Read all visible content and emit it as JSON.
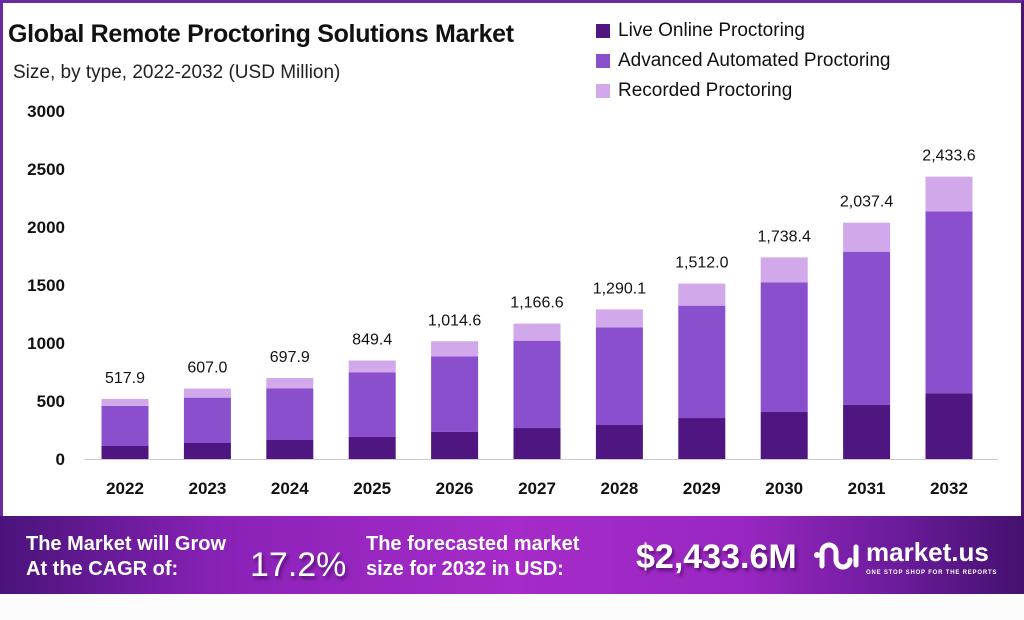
{
  "title": "Global Remote Proctoring Solutions Market",
  "subtitle": "Size, by type, 2022-2032 (USD Million)",
  "colors": {
    "live": "#4f1580",
    "advanced": "#8a4fcc",
    "recorded": "#d1a8ea",
    "frame": "#6a2aa0",
    "text": "#111111"
  },
  "chart_data": {
    "type": "bar",
    "stacked": true,
    "title": "Global Remote Proctoring Solutions Market",
    "subtitle": "Size, by type, 2022-2032 (USD Million)",
    "xlabel": "",
    "ylabel": "",
    "ylim": [
      0,
      3000
    ],
    "yticks": [
      "0",
      "500",
      "1000",
      "1500",
      "2000",
      "2500",
      "3000"
    ],
    "ytick_values": [
      0,
      500,
      1000,
      1500,
      2000,
      2500,
      3000
    ],
    "grid": false,
    "legend_position": "top-right",
    "categories": [
      "2022",
      "2023",
      "2024",
      "2025",
      "2026",
      "2027",
      "2028",
      "2029",
      "2030",
      "2031",
      "2032"
    ],
    "series": [
      {
        "name": "Live Online Proctoring",
        "color_key": "live",
        "values": [
          112,
          138,
          164,
          190,
          233,
          267,
          293,
          353,
          405,
          466,
          567
        ]
      },
      {
        "name": "Advanced Automated Proctoring",
        "color_key": "advanced",
        "values": [
          346,
          391,
          444,
          556,
          652,
          753,
          842,
          969,
          1118,
          1321,
          1567
        ]
      },
      {
        "name": "Recorded Proctoring",
        "color_key": "recorded",
        "values": [
          60,
          78,
          90,
          103,
          130,
          147,
          155,
          190,
          215,
          250,
          300
        ]
      }
    ],
    "totals": [
      517.9,
      607.0,
      697.9,
      849.4,
      1014.6,
      1166.6,
      1290.1,
      1512.0,
      1738.4,
      2037.4,
      2433.6
    ],
    "total_labels": [
      "517.9",
      "607.0",
      "697.9",
      "849.4",
      "1,014.6",
      "1,166.6",
      "1,290.1",
      "1,512.0",
      "1,738.4",
      "2,037.4",
      "2,433.6"
    ]
  },
  "banner": {
    "cagr_line1": "The Market will Grow",
    "cagr_line2": "At the CAGR of:",
    "cagr_value": "17.2%",
    "forecast_line1": "The forecasted market",
    "forecast_line2": "size for 2032 in USD:",
    "forecast_value": "$2,433.6M",
    "logo_text": "market.us",
    "logo_tagline": "ONE STOP SHOP FOR THE REPORTS"
  }
}
